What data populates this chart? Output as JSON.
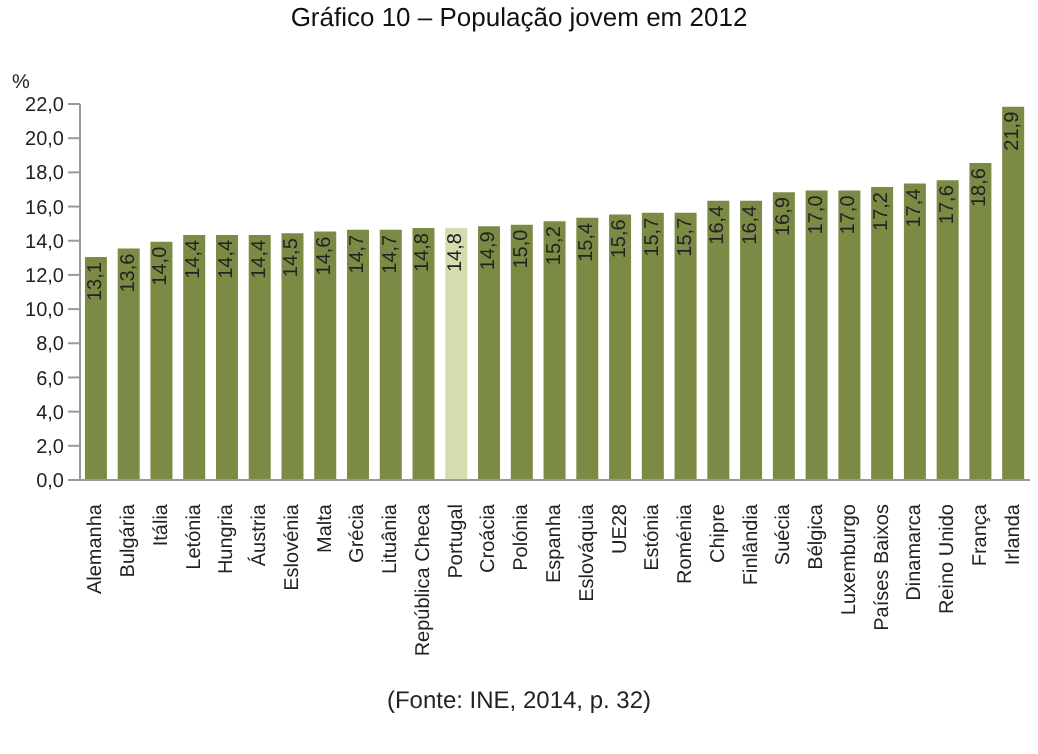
{
  "chart_data": {
    "type": "bar",
    "title": "Gráfico 10 – População jovem em 2012",
    "ylabel": "%",
    "categories": [
      "Alemanha",
      "Bulgária",
      "Itália",
      "Letónia",
      "Hungria",
      "Áustria",
      "Eslovénia",
      "Malta",
      "Grécia",
      "Lituânia",
      "República Checa",
      "Portugal",
      "Croácia",
      "Polónia",
      "Espanha",
      "Eslováquia",
      "UE28",
      "Estónia",
      "Roménia",
      "Chipre",
      "Finlândia",
      "Suécia",
      "Bélgica",
      "Luxemburgo",
      "Países Baixos",
      "Dinamarca",
      "Reino Unido",
      "França",
      "Irlanda"
    ],
    "values": [
      13.1,
      13.6,
      14.0,
      14.4,
      14.4,
      14.4,
      14.5,
      14.6,
      14.7,
      14.7,
      14.8,
      14.8,
      14.9,
      15.0,
      15.2,
      15.4,
      15.6,
      15.7,
      15.7,
      16.4,
      16.4,
      16.9,
      17.0,
      17.0,
      17.2,
      17.4,
      17.6,
      18.6,
      21.9
    ],
    "value_labels": [
      "13,1",
      "13,6",
      "14,0",
      "14,4",
      "14,4",
      "14,4",
      "14,5",
      "14,6",
      "14,7",
      "14,7",
      "14,8",
      "14,8",
      "14,9",
      "15,0",
      "15,2",
      "15,4",
      "15,6",
      "15,7",
      "15,7",
      "16,4",
      "16,4",
      "16,9",
      "17,0",
      "17,0",
      "17,2",
      "17,4",
      "17,6",
      "18,6",
      "21,9"
    ],
    "colors": [
      "#7b8b45",
      "#7b8b45",
      "#7b8b45",
      "#7b8b45",
      "#7b8b45",
      "#7b8b45",
      "#7b8b45",
      "#7b8b45",
      "#7b8b45",
      "#7b8b45",
      "#7b8b45",
      "#d5dcaf",
      "#7b8b45",
      "#7b8b45",
      "#7b8b45",
      "#7b8b45",
      "#7b8b45",
      "#7b8b45",
      "#7b8b45",
      "#7b8b45",
      "#7b8b45",
      "#7b8b45",
      "#7b8b45",
      "#7b8b45",
      "#7b8b45",
      "#7b8b45",
      "#7b8b45",
      "#7b8b45",
      "#7b8b45"
    ],
    "ylim": [
      0,
      22
    ],
    "yticks": [
      {
        "value": 0,
        "label": "0,0"
      },
      {
        "value": 2,
        "label": "2,0"
      },
      {
        "value": 4,
        "label": "4,0"
      },
      {
        "value": 6,
        "label": "6,0"
      },
      {
        "value": 8,
        "label": "8,0"
      },
      {
        "value": 10,
        "label": "10,0"
      },
      {
        "value": 12,
        "label": "12,0"
      },
      {
        "value": 14,
        "label": "14,0"
      },
      {
        "value": 16,
        "label": "16,0"
      },
      {
        "value": 18,
        "label": "18,0"
      },
      {
        "value": 20,
        "label": "20,0"
      },
      {
        "value": 22,
        "label": "22,0"
      }
    ],
    "grid": false,
    "legend": false,
    "annotations": [
      "(Fonte: INE, 2014, p. 32)"
    ]
  }
}
